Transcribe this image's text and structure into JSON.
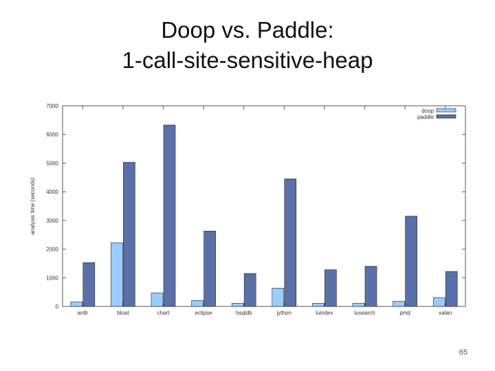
{
  "slide": {
    "title_line1": "Doop vs. Paddle:",
    "title_line2": "1-call-site-sensitive-heap",
    "page_number": "65"
  },
  "chart_data": {
    "type": "bar",
    "title": "",
    "xlabel": "",
    "ylabel": "analysis time (seconds)",
    "ylim": [
      0,
      7000
    ],
    "yticks": [
      0,
      1000,
      2000,
      3000,
      4000,
      5000,
      6000,
      7000
    ],
    "categories": [
      "antlr",
      "bloat",
      "chart",
      "eclipse",
      "hsqldb",
      "jython",
      "luindex",
      "lusearch",
      "pmd",
      "xalan"
    ],
    "series": [
      {
        "name": "doop",
        "color": "#99ccff",
        "values": [
          160,
          2220,
          470,
          210,
          110,
          640,
          110,
          110,
          180,
          310
        ]
      },
      {
        "name": "paddle",
        "color": "#5b70a8",
        "values": [
          1530,
          5030,
          6330,
          2630,
          1150,
          4450,
          1280,
          1400,
          3150,
          1220
        ]
      }
    ],
    "legend": "top-right",
    "grid": false
  }
}
